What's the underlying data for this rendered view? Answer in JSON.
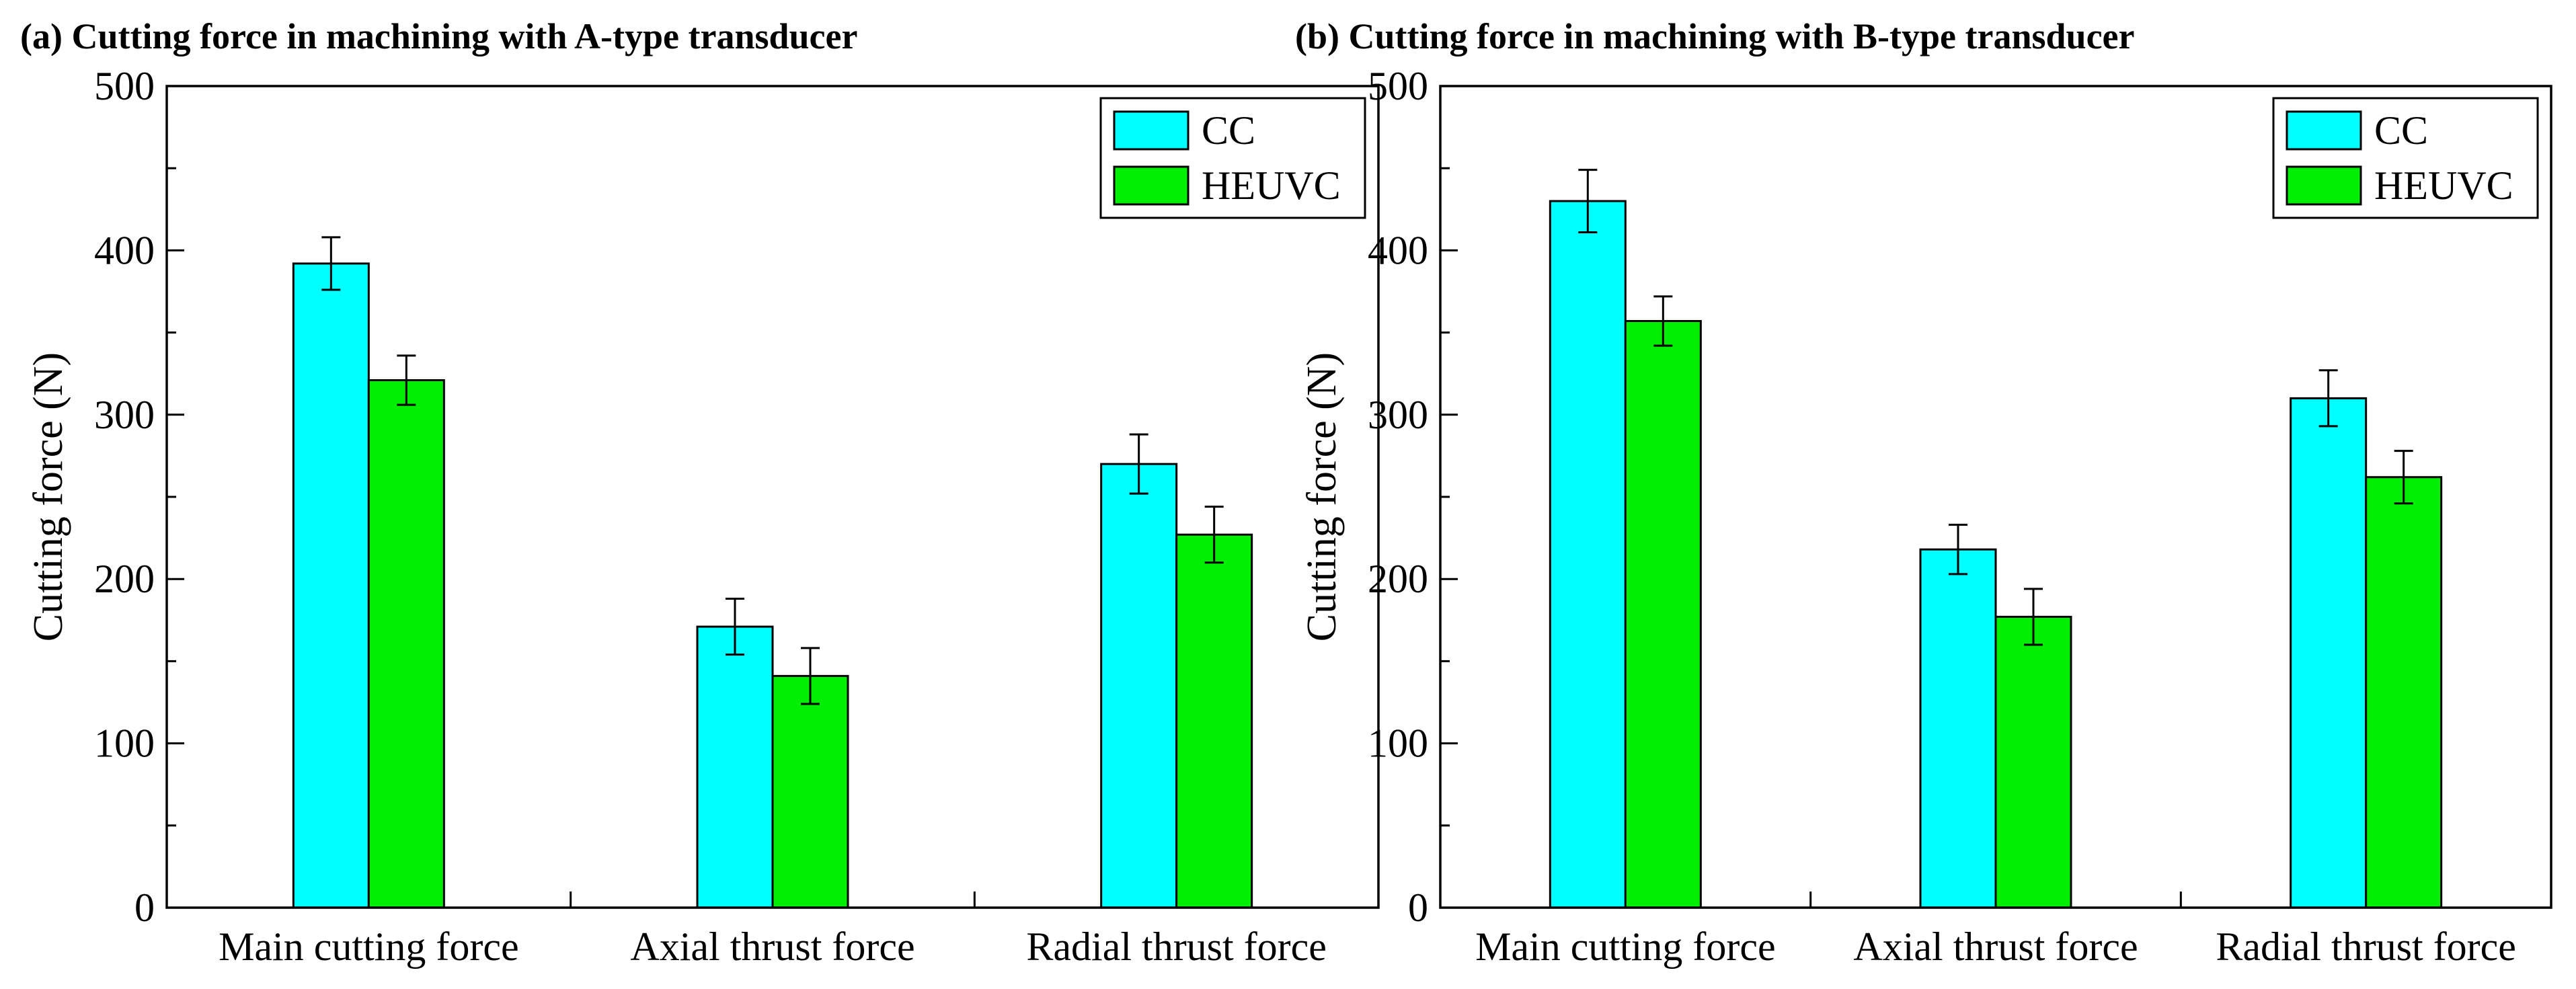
{
  "chart_data": [
    {
      "type": "bar",
      "title": "(a) Cutting force in machining with A-type transducer",
      "xlabel": "",
      "ylabel": "Cutting force (N)",
      "ylim": [
        0,
        500
      ],
      "yticks": [
        "0",
        "100",
        "200",
        "300",
        "400",
        "500"
      ],
      "categories": [
        "Main cutting force",
        "Axial thrust force",
        "Radial thrust force"
      ],
      "legend_position": "top-right",
      "series": [
        {
          "name": "CC",
          "color": "#00FFFF",
          "values": [
            392,
            171,
            270
          ],
          "errors": [
            16,
            17,
            18
          ]
        },
        {
          "name": "HEUVC",
          "color": "#00EE00",
          "values": [
            321,
            141,
            227
          ],
          "errors": [
            15,
            17,
            17
          ]
        }
      ]
    },
    {
      "type": "bar",
      "title": "(b) Cutting force in machining with B-type transducer",
      "xlabel": "",
      "ylabel": "Cutting force (N)",
      "ylim": [
        0,
        500
      ],
      "yticks": [
        "0",
        "100",
        "200",
        "300",
        "400",
        "500"
      ],
      "categories": [
        "Main cutting force",
        "Axial thrust force",
        "Radial thrust force"
      ],
      "legend_position": "top-right",
      "series": [
        {
          "name": "CC",
          "color": "#00FFFF",
          "values": [
            430,
            218,
            310
          ],
          "errors": [
            19,
            15,
            17
          ]
        },
        {
          "name": "HEUVC",
          "color": "#00EE00",
          "values": [
            357,
            177,
            262
          ],
          "errors": [
            15,
            17,
            16
          ]
        }
      ]
    }
  ]
}
